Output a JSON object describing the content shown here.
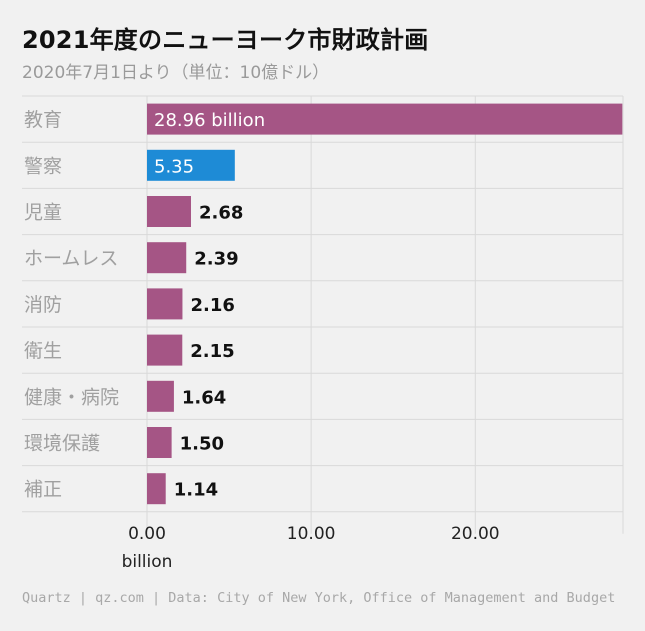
{
  "title": "2021年度のニューヨーク市財政計画",
  "subtitle": "2020年7月1日より（単位：10億ドル）",
  "footer": "Quartz | qz.com | Data: City of New York, Office of Management and Budget",
  "colors": {
    "bar_default": "#a55585",
    "bar_highlight": "#1e8bd6",
    "grid": "#d9d9d9",
    "category_text": "#a0a0a0",
    "value_text": "#111111",
    "background": "#f1f1f1"
  },
  "chart_data": {
    "type": "bar",
    "orientation": "horizontal",
    "categories": [
      "教育",
      "警察",
      "児童",
      "ホームレス",
      "消防",
      "衛生",
      "健康・病院",
      "環境保護",
      "補正"
    ],
    "values": [
      28.96,
      5.35,
      2.68,
      2.39,
      2.16,
      2.15,
      1.64,
      1.5,
      1.14
    ],
    "value_labels": [
      "28.96 billion",
      "5.35",
      "2.68",
      "2.39",
      "2.16",
      "2.15",
      "1.64",
      "1.50",
      "1.14"
    ],
    "highlight_index": 1,
    "x_ticks": [
      0,
      10,
      20
    ],
    "x_tick_labels": [
      "0.00",
      "10.00",
      "20.00"
    ],
    "x_unit_label": "billion",
    "xlim": [
      0,
      29
    ],
    "grid": true
  }
}
